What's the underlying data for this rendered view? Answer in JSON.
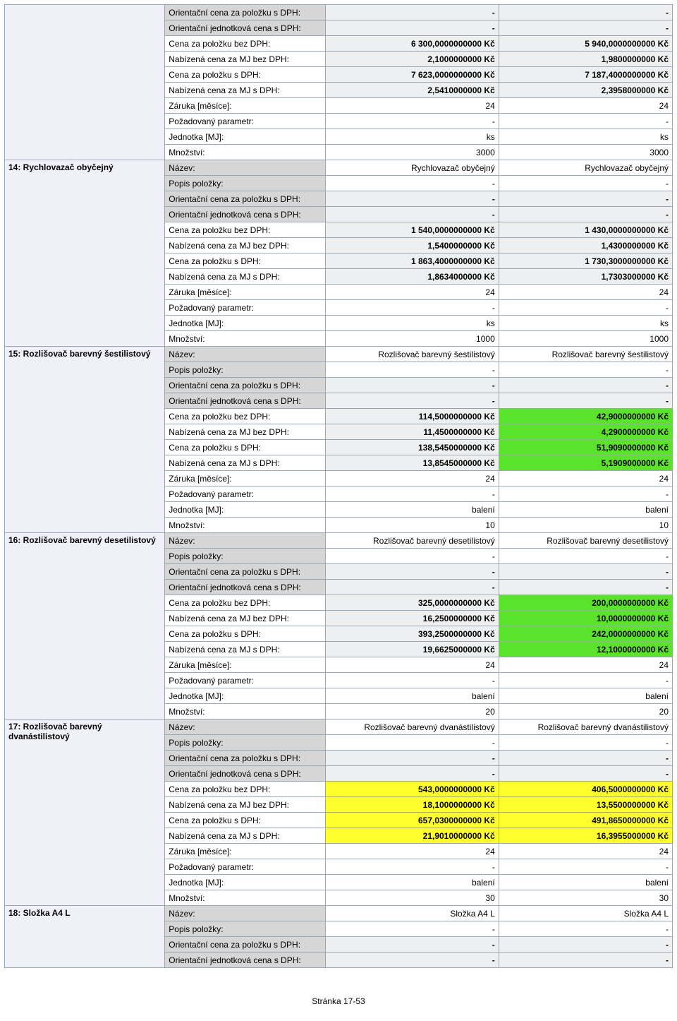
{
  "footer": "Stránka 17-53",
  "groups": [
    {
      "leftLabel": "",
      "rows": [
        {
          "label": "Orientační cena za položku s DPH:",
          "labelGray": true,
          "v1": "-",
          "v2": "-",
          "style": "bold",
          "bg1": "hl-gray",
          "bg2": "hl-gray"
        },
        {
          "label": "Orientační jednotková cena s DPH:",
          "labelGray": true,
          "v1": "-",
          "v2": "-",
          "style": "bold",
          "bg1": "hl-gray",
          "bg2": "hl-gray"
        },
        {
          "label": "Cena za položku bez DPH:",
          "labelGray": false,
          "v1": "6 300,0000000000 Kč",
          "v2": "5 940,0000000000 Kč",
          "style": "bold",
          "bg1": "hl-gray",
          "bg2": "hl-gray"
        },
        {
          "label": "Nabízená cena za MJ bez DPH:",
          "labelGray": false,
          "v1": "2,1000000000 Kč",
          "v2": "1,9800000000 Kč",
          "style": "bold",
          "bg1": "hl-gray",
          "bg2": "hl-gray"
        },
        {
          "label": "Cena za položku s DPH:",
          "labelGray": false,
          "v1": "7 623,0000000000 Kč",
          "v2": "7 187,4000000000 Kč",
          "style": "bold",
          "bg1": "hl-gray",
          "bg2": "hl-gray"
        },
        {
          "label": "Nabízená cena za MJ s DPH:",
          "labelGray": false,
          "v1": "2,5410000000 Kč",
          "v2": "2,3958000000 Kč",
          "style": "bold",
          "bg1": "hl-gray",
          "bg2": "hl-gray"
        },
        {
          "label": "Záruka [měsíce]:",
          "labelGray": false,
          "v1": "24",
          "v2": "24",
          "style": "",
          "bg1": "hl-none",
          "bg2": "hl-none"
        },
        {
          "label": "Požadovaný parametr:",
          "labelGray": false,
          "v1": "-",
          "v2": "-",
          "style": "",
          "bg1": "hl-none",
          "bg2": "hl-none"
        },
        {
          "label": "Jednotka [MJ]:",
          "labelGray": false,
          "v1": "ks",
          "v2": "ks",
          "style": "",
          "bg1": "hl-none",
          "bg2": "hl-none"
        },
        {
          "label": "Množství:",
          "labelGray": false,
          "v1": "3000",
          "v2": "3000",
          "style": "",
          "bg1": "hl-none",
          "bg2": "hl-none"
        }
      ]
    },
    {
      "leftLabel": "14: Rychlovazač obyčejný",
      "rows": [
        {
          "label": "Název:",
          "labelGray": true,
          "v1": "Rychlovazač obyčejný",
          "v2": "Rychlovazač obyčejný",
          "style": "",
          "bg1": "hl-none",
          "bg2": "hl-none"
        },
        {
          "label": "Popis položky:",
          "labelGray": true,
          "v1": "-",
          "v2": "-",
          "style": "",
          "bg1": "hl-none",
          "bg2": "hl-none"
        },
        {
          "label": "Orientační cena za položku s DPH:",
          "labelGray": true,
          "v1": "-",
          "v2": "-",
          "style": "bold",
          "bg1": "hl-gray",
          "bg2": "hl-gray"
        },
        {
          "label": "Orientační jednotková cena s DPH:",
          "labelGray": true,
          "v1": "-",
          "v2": "-",
          "style": "bold",
          "bg1": "hl-gray",
          "bg2": "hl-gray"
        },
        {
          "label": "Cena za položku bez DPH:",
          "labelGray": false,
          "v1": "1 540,0000000000 Kč",
          "v2": "1 430,0000000000 Kč",
          "style": "bold",
          "bg1": "hl-gray",
          "bg2": "hl-gray"
        },
        {
          "label": "Nabízená cena za MJ bez DPH:",
          "labelGray": false,
          "v1": "1,5400000000 Kč",
          "v2": "1,4300000000 Kč",
          "style": "bold",
          "bg1": "hl-gray",
          "bg2": "hl-gray"
        },
        {
          "label": "Cena za položku s DPH:",
          "labelGray": false,
          "v1": "1 863,4000000000 Kč",
          "v2": "1 730,3000000000 Kč",
          "style": "bold",
          "bg1": "hl-gray",
          "bg2": "hl-gray"
        },
        {
          "label": "Nabízená cena za MJ s DPH:",
          "labelGray": false,
          "v1": "1,8634000000 Kč",
          "v2": "1,7303000000 Kč",
          "style": "bold",
          "bg1": "hl-gray",
          "bg2": "hl-gray"
        },
        {
          "label": "Záruka [měsíce]:",
          "labelGray": false,
          "v1": "24",
          "v2": "24",
          "style": "",
          "bg1": "hl-none",
          "bg2": "hl-none"
        },
        {
          "label": "Požadovaný parametr:",
          "labelGray": false,
          "v1": "-",
          "v2": "-",
          "style": "",
          "bg1": "hl-none",
          "bg2": "hl-none"
        },
        {
          "label": "Jednotka [MJ]:",
          "labelGray": false,
          "v1": "ks",
          "v2": "ks",
          "style": "",
          "bg1": "hl-none",
          "bg2": "hl-none"
        },
        {
          "label": "Množství:",
          "labelGray": false,
          "v1": "1000",
          "v2": "1000",
          "style": "",
          "bg1": "hl-none",
          "bg2": "hl-none"
        }
      ]
    },
    {
      "leftLabel": "15: Rozlišovač barevný šestilistový",
      "rows": [
        {
          "label": "Název:",
          "labelGray": true,
          "v1": "Rozlišovač barevný šestilistový",
          "v2": "Rozlišovač barevný šestilistový",
          "style": "",
          "bg1": "hl-none",
          "bg2": "hl-none"
        },
        {
          "label": "Popis položky:",
          "labelGray": true,
          "v1": "-",
          "v2": "-",
          "style": "",
          "bg1": "hl-none",
          "bg2": "hl-none"
        },
        {
          "label": "Orientační cena za položku s DPH:",
          "labelGray": true,
          "v1": "-",
          "v2": "-",
          "style": "bold",
          "bg1": "hl-gray",
          "bg2": "hl-gray"
        },
        {
          "label": "Orientační jednotková cena s DPH:",
          "labelGray": true,
          "v1": "-",
          "v2": "-",
          "style": "bold",
          "bg1": "hl-gray",
          "bg2": "hl-gray"
        },
        {
          "label": "Cena za položku bez DPH:",
          "labelGray": false,
          "v1": "114,5000000000 Kč",
          "v2": "42,9000000000 Kč",
          "style": "bold",
          "bg1": "hl-gray",
          "bg2": "hl-green"
        },
        {
          "label": "Nabízená cena za MJ bez DPH:",
          "labelGray": false,
          "v1": "11,4500000000 Kč",
          "v2": "4,2900000000 Kč",
          "style": "bold",
          "bg1": "hl-gray",
          "bg2": "hl-green"
        },
        {
          "label": "Cena za položku s DPH:",
          "labelGray": false,
          "v1": "138,5450000000 Kč",
          "v2": "51,9090000000 Kč",
          "style": "bold",
          "bg1": "hl-gray",
          "bg2": "hl-green"
        },
        {
          "label": "Nabízená cena za MJ s DPH:",
          "labelGray": false,
          "v1": "13,8545000000 Kč",
          "v2": "5,1909000000 Kč",
          "style": "bold",
          "bg1": "hl-gray",
          "bg2": "hl-green"
        },
        {
          "label": "Záruka [měsíce]:",
          "labelGray": false,
          "v1": "24",
          "v2": "24",
          "style": "",
          "bg1": "hl-none",
          "bg2": "hl-none"
        },
        {
          "label": "Požadovaný parametr:",
          "labelGray": false,
          "v1": "-",
          "v2": "-",
          "style": "",
          "bg1": "hl-none",
          "bg2": "hl-none"
        },
        {
          "label": "Jednotka [MJ]:",
          "labelGray": false,
          "v1": "balení",
          "v2": "balení",
          "style": "",
          "bg1": "hl-none",
          "bg2": "hl-none"
        },
        {
          "label": "Množství:",
          "labelGray": false,
          "v1": "10",
          "v2": "10",
          "style": "",
          "bg1": "hl-none",
          "bg2": "hl-none"
        }
      ]
    },
    {
      "leftLabel": "16: Rozlišovač barevný desetilistový",
      "rows": [
        {
          "label": "Název:",
          "labelGray": true,
          "v1": "Rozlišovač barevný desetilistový",
          "v2": "Rozlišovač barevný desetilistový",
          "style": "",
          "bg1": "hl-none",
          "bg2": "hl-none"
        },
        {
          "label": "Popis položky:",
          "labelGray": true,
          "v1": "-",
          "v2": "-",
          "style": "",
          "bg1": "hl-none",
          "bg2": "hl-none"
        },
        {
          "label": "Orientační cena za položku s DPH:",
          "labelGray": true,
          "v1": "-",
          "v2": "-",
          "style": "bold",
          "bg1": "hl-gray",
          "bg2": "hl-gray"
        },
        {
          "label": "Orientační jednotková cena s DPH:",
          "labelGray": true,
          "v1": "-",
          "v2": "-",
          "style": "bold",
          "bg1": "hl-gray",
          "bg2": "hl-gray"
        },
        {
          "label": "Cena za položku bez DPH:",
          "labelGray": false,
          "v1": "325,0000000000 Kč",
          "v2": "200,0000000000 Kč",
          "style": "bold",
          "bg1": "hl-gray",
          "bg2": "hl-green"
        },
        {
          "label": "Nabízená cena za MJ bez DPH:",
          "labelGray": false,
          "v1": "16,2500000000 Kč",
          "v2": "10,0000000000 Kč",
          "style": "bold",
          "bg1": "hl-gray",
          "bg2": "hl-green"
        },
        {
          "label": "Cena za položku s DPH:",
          "labelGray": false,
          "v1": "393,2500000000 Kč",
          "v2": "242,0000000000 Kč",
          "style": "bold",
          "bg1": "hl-gray",
          "bg2": "hl-green"
        },
        {
          "label": "Nabízená cena za MJ s DPH:",
          "labelGray": false,
          "v1": "19,6625000000 Kč",
          "v2": "12,1000000000 Kč",
          "style": "bold",
          "bg1": "hl-gray",
          "bg2": "hl-green"
        },
        {
          "label": "Záruka [měsíce]:",
          "labelGray": false,
          "v1": "24",
          "v2": "24",
          "style": "",
          "bg1": "hl-none",
          "bg2": "hl-none"
        },
        {
          "label": "Požadovaný parametr:",
          "labelGray": false,
          "v1": "-",
          "v2": "-",
          "style": "",
          "bg1": "hl-none",
          "bg2": "hl-none"
        },
        {
          "label": "Jednotka [MJ]:",
          "labelGray": false,
          "v1": "balení",
          "v2": "balení",
          "style": "",
          "bg1": "hl-none",
          "bg2": "hl-none"
        },
        {
          "label": "Množství:",
          "labelGray": false,
          "v1": "20",
          "v2": "20",
          "style": "",
          "bg1": "hl-none",
          "bg2": "hl-none"
        }
      ]
    },
    {
      "leftLabel": "17: Rozlišovač barevný dvanástilistový",
      "rows": [
        {
          "label": "Název:",
          "labelGray": true,
          "v1": "Rozlišovač barevný dvanástilistový",
          "v2": "Rozlišovač barevný dvanástilistový",
          "style": "",
          "bg1": "hl-none",
          "bg2": "hl-none"
        },
        {
          "label": "Popis položky:",
          "labelGray": true,
          "v1": "-",
          "v2": "-",
          "style": "",
          "bg1": "hl-none",
          "bg2": "hl-none"
        },
        {
          "label": "Orientační cena za položku s DPH:",
          "labelGray": true,
          "v1": "-",
          "v2": "-",
          "style": "bold",
          "bg1": "hl-gray",
          "bg2": "hl-gray"
        },
        {
          "label": "Orientační jednotková cena s DPH:",
          "labelGray": true,
          "v1": "-",
          "v2": "-",
          "style": "bold",
          "bg1": "hl-gray",
          "bg2": "hl-gray"
        },
        {
          "label": "Cena za položku bez DPH:",
          "labelGray": false,
          "v1": "543,0000000000 Kč",
          "v2": "406,5000000000 Kč",
          "style": "bold",
          "bg1": "hl-yellow",
          "bg2": "hl-yellow"
        },
        {
          "label": "Nabízená cena za MJ bez DPH:",
          "labelGray": false,
          "v1": "18,1000000000 Kč",
          "v2": "13,5500000000 Kč",
          "style": "bold",
          "bg1": "hl-yellow",
          "bg2": "hl-yellow"
        },
        {
          "label": "Cena za položku s DPH:",
          "labelGray": false,
          "v1": "657,0300000000 Kč",
          "v2": "491,8650000000 Kč",
          "style": "bold",
          "bg1": "hl-yellow",
          "bg2": "hl-yellow"
        },
        {
          "label": "Nabízená cena za MJ s DPH:",
          "labelGray": false,
          "v1": "21,9010000000 Kč",
          "v2": "16,3955000000 Kč",
          "style": "bold",
          "bg1": "hl-yellow",
          "bg2": "hl-yellow"
        },
        {
          "label": "Záruka [měsíce]:",
          "labelGray": false,
          "v1": "24",
          "v2": "24",
          "style": "",
          "bg1": "hl-none",
          "bg2": "hl-none"
        },
        {
          "label": "Požadovaný parametr:",
          "labelGray": false,
          "v1": "-",
          "v2": "-",
          "style": "",
          "bg1": "hl-none",
          "bg2": "hl-none"
        },
        {
          "label": "Jednotka [MJ]:",
          "labelGray": false,
          "v1": "balení",
          "v2": "balení",
          "style": "",
          "bg1": "hl-none",
          "bg2": "hl-none"
        },
        {
          "label": "Množství:",
          "labelGray": false,
          "v1": "30",
          "v2": "30",
          "style": "",
          "bg1": "hl-none",
          "bg2": "hl-none"
        }
      ]
    },
    {
      "leftLabel": "18: Složka A4 L",
      "rows": [
        {
          "label": "Název:",
          "labelGray": true,
          "v1": "Složka A4 L",
          "v2": "Složka A4 L",
          "style": "",
          "bg1": "hl-none",
          "bg2": "hl-none"
        },
        {
          "label": "Popis položky:",
          "labelGray": true,
          "v1": "-",
          "v2": "-",
          "style": "",
          "bg1": "hl-none",
          "bg2": "hl-none"
        },
        {
          "label": "Orientační cena za položku s DPH:",
          "labelGray": true,
          "v1": "-",
          "v2": "-",
          "style": "bold",
          "bg1": "hl-gray",
          "bg2": "hl-gray"
        },
        {
          "label": "Orientační jednotková cena s DPH:",
          "labelGray": true,
          "v1": "-",
          "v2": "-",
          "style": "bold",
          "bg1": "hl-gray",
          "bg2": "hl-gray"
        }
      ]
    }
  ]
}
